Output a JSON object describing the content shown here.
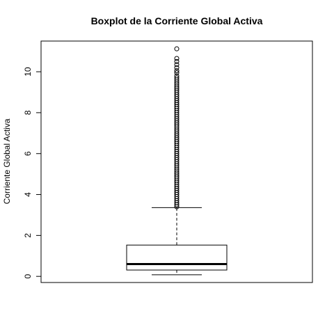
{
  "chart_data": {
    "type": "box",
    "title": "Boxplot de la Corriente Global Activa",
    "xlabel": "",
    "ylabel": "Corriente Global Activa",
    "ylim": [
      -0.3,
      11.5
    ],
    "yticks": [
      0,
      2,
      4,
      6,
      8,
      10
    ],
    "grid": false,
    "box": {
      "min": 0.08,
      "q1": 0.31,
      "median": 0.6,
      "q3": 1.53,
      "upper_whisker": 3.36
    },
    "outliers": [
      3.4,
      3.5,
      3.6,
      3.7,
      3.8,
      3.9,
      4.0,
      4.1,
      4.2,
      4.3,
      4.4,
      4.5,
      4.6,
      4.7,
      4.8,
      4.9,
      5.0,
      5.1,
      5.2,
      5.3,
      5.4,
      5.5,
      5.6,
      5.7,
      5.8,
      5.9,
      6.0,
      6.1,
      6.2,
      6.3,
      6.4,
      6.5,
      6.6,
      6.7,
      6.8,
      6.9,
      7.0,
      7.1,
      7.2,
      7.3,
      7.4,
      7.5,
      7.6,
      7.7,
      7.8,
      7.9,
      8.0,
      8.1,
      8.2,
      8.3,
      8.4,
      8.5,
      8.6,
      8.7,
      8.8,
      8.9,
      9.0,
      9.1,
      9.2,
      9.3,
      9.4,
      9.5,
      9.6,
      9.7,
      9.8,
      9.95,
      10.05,
      10.2,
      10.35,
      10.5,
      10.65,
      11.12
    ]
  }
}
